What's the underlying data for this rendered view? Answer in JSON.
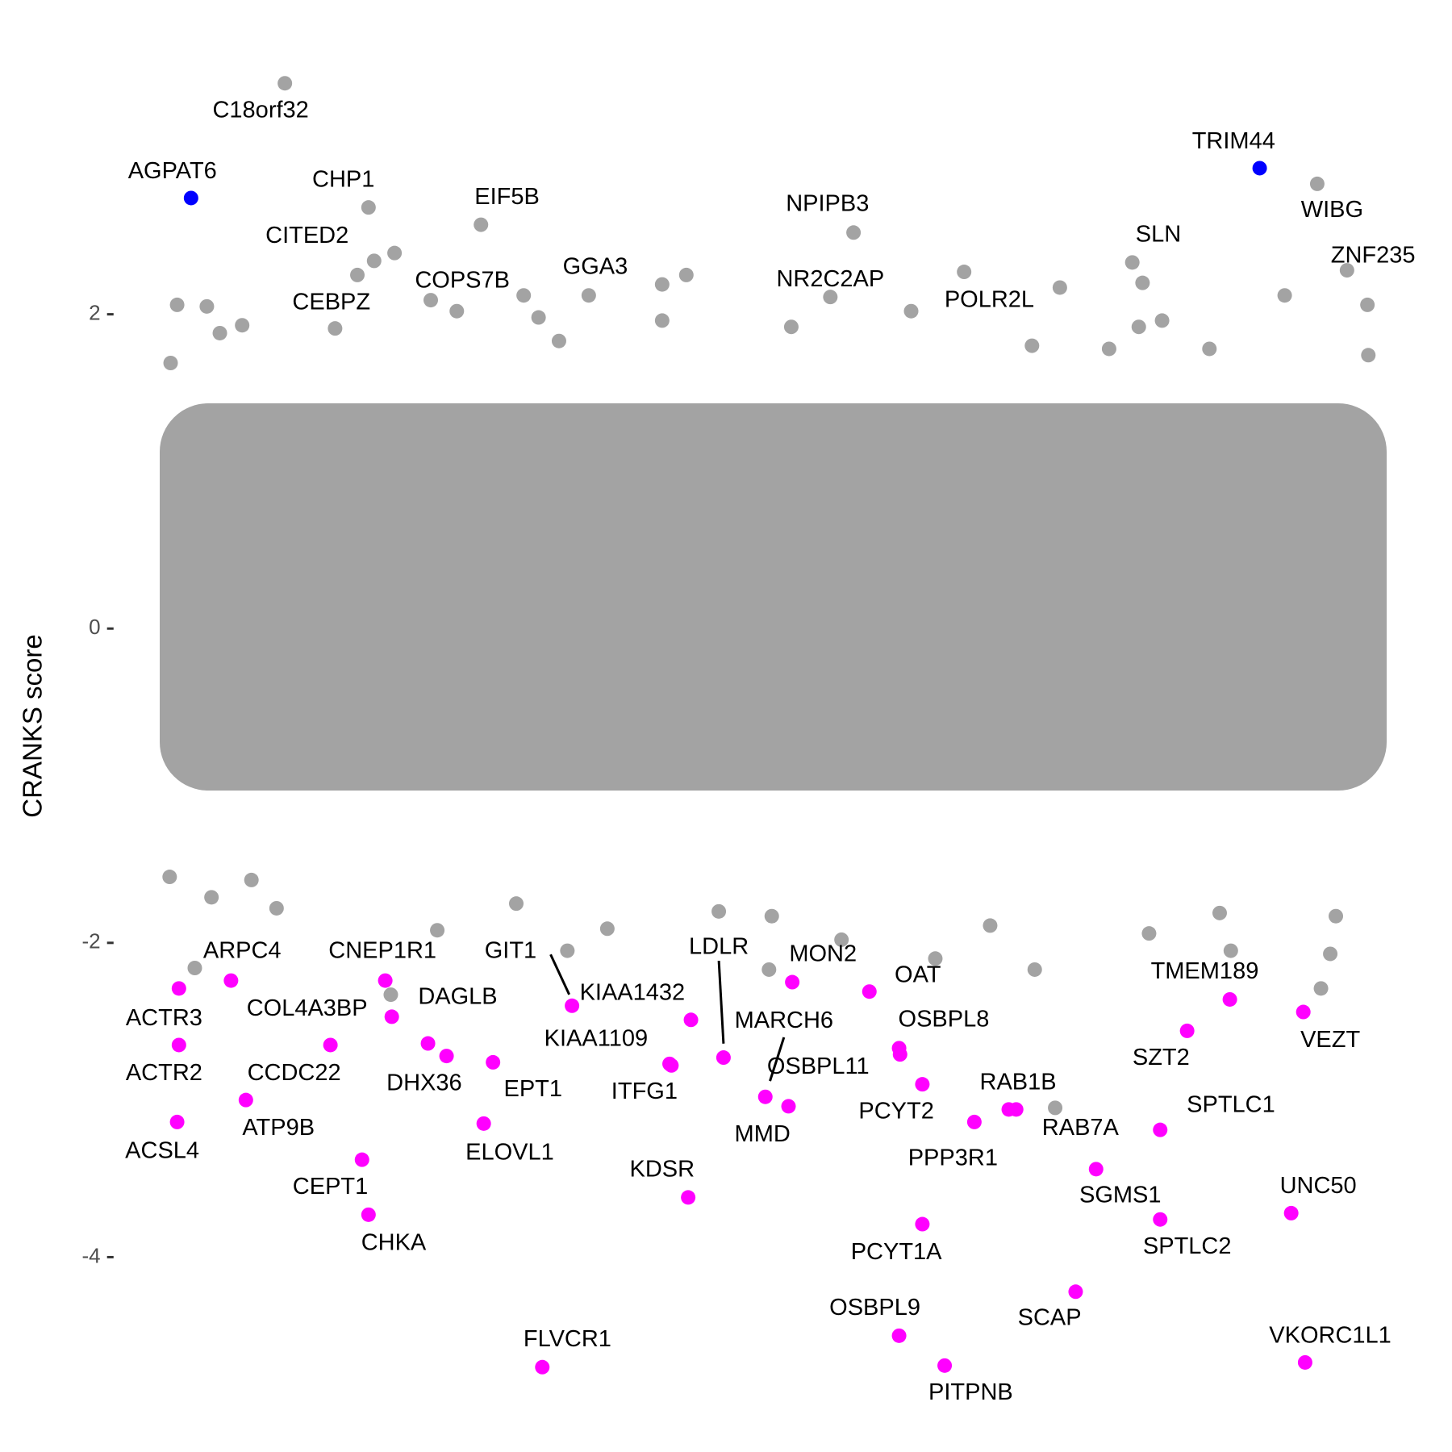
{
  "chart_data": {
    "type": "scatter",
    "ylabel": "CRANKS score",
    "ylim": [
      -5.24,
      4.0
    ],
    "yticks": [
      -4,
      -2,
      0,
      2
    ],
    "xlim": [
      -900,
      19900
    ],
    "series": [
      {
        "color": "#0000ff",
        "labels": [
          "AGPAT6",
          "TRIM44"
        ],
        "x": [
          476,
          17060
        ],
        "y": [
          2.74,
          2.93
        ]
      },
      {
        "color": "#a3a3a3",
        "labels": [
          "C18orf32",
          "CHP1",
          "CITED2",
          "CEBPZ",
          "EIF5B",
          "COPS7B",
          "GGA3",
          "NPIPB3",
          "NR2C2AP",
          "POLR2L",
          "SLN",
          "WIBG",
          "ZNF235"
        ],
        "x": [
          1932,
          3230,
          3317,
          2711,
          4975,
          4600,
          6648,
          10757,
          10397,
          11651,
          15083,
          17953,
          18415
        ],
        "y": [
          3.47,
          2.68,
          2.34,
          1.91,
          2.57,
          2.02,
          2.12,
          2.52,
          2.11,
          2.02,
          2.33,
          2.83,
          2.28
        ]
      },
      {
        "color": "#ff00ff",
        "labels": [
          "ARPC4",
          "ACTR3",
          "ACTR2",
          "ACSL4",
          "CNEP1R1",
          "COL4A3BP",
          "CCDC22",
          "ATP9B",
          "DAGLB",
          "DHX36",
          "EPT1",
          "ELOVL1",
          "GIT1",
          "KIAA1432",
          "KIAA1109",
          "ITFG1",
          "LDLR",
          "MARCH6",
          "MMD",
          "OSBPL11",
          "OSBPL8",
          "MON2",
          "OAT",
          "PCYT2",
          "RAB1B",
          "RAB7A",
          "PPP3R1",
          "TMEM189",
          "VEZT",
          "SZT2",
          "SPTLC1",
          "SGMS1",
          "SPTLC2",
          "UNC50",
          "KDSR",
          "CEPT1",
          "CHKA",
          "PCYT1A",
          "OSBPL9",
          "SCAP",
          "FLVCR1",
          "PITPNB",
          "VKORC1L1"
        ],
        "x": [
          1096,
          288,
          288,
          260,
          3490,
          3591,
          2639,
          1327,
          4153,
          4441,
          5162,
          5018,
          6388,
          8234,
          7902,
          7931,
          8739,
          9388,
          9748,
          11479,
          11464,
          9806,
          11003,
          11825,
          13166,
          13281,
          12632,
          16597,
          17737,
          15934,
          15516,
          14521,
          15516,
          17549,
          8191,
          3129,
          3230,
          11825,
          11464,
          14204,
          5927,
          12171,
          17765
        ],
        "y": [
          -2.24,
          -2.29,
          -2.65,
          -3.14,
          -2.24,
          -2.47,
          -2.65,
          -3.0,
          -2.64,
          -2.72,
          -2.76,
          -3.15,
          -2.4,
          -2.49,
          -2.77,
          -2.78,
          -2.73,
          -2.98,
          -3.04,
          -2.71,
          -2.67,
          -2.25,
          -2.31,
          -2.9,
          -3.06,
          -3.06,
          -3.14,
          -2.36,
          -2.44,
          -2.56,
          -3.19,
          -3.44,
          -3.76,
          -3.72,
          -3.62,
          -3.38,
          -3.73,
          -3.79,
          -4.5,
          -4.22,
          -4.7,
          -4.69,
          -4.67
        ]
      },
      {
        "color": "#a3a3a3",
        "x": [
          260,
          721,
          923,
          1269,
          3634,
          3057,
          4196,
          5638,
          5869,
          6186,
          7787,
          8162,
          7787,
          9791,
          12473,
          13959,
          15242,
          15184,
          15545,
          17448,
          18732,
          18746,
          16280,
          14723,
          159,
          13526,
          144,
          534,
          793,
          1413,
          1803,
          3576,
          4297,
          5523,
          6316,
          6936,
          8666,
          9445,
          9488,
          10570,
          12026,
          12877,
          13569,
          13886,
          15343,
          16439,
          16612,
          18011,
          18155,
          18242
        ],
        "y": [
          2.06,
          2.05,
          1.88,
          1.93,
          2.39,
          2.25,
          2.09,
          2.12,
          1.98,
          1.83,
          2.19,
          2.25,
          1.96,
          1.92,
          2.27,
          2.17,
          2.2,
          1.92,
          1.96,
          2.12,
          2.06,
          1.74,
          1.78,
          1.78,
          1.69,
          1.8,
          -1.58,
          -2.16,
          -1.71,
          -1.6,
          -1.78,
          -2.33,
          -1.92,
          -1.75,
          -2.05,
          -1.91,
          -1.8,
          -2.17,
          -1.83,
          -1.98,
          -2.1,
          -1.89,
          -2.17,
          -3.05,
          -1.94,
          -1.81,
          -2.05,
          -2.29,
          -2.07,
          -1.83
        ]
      }
    ]
  }
}
